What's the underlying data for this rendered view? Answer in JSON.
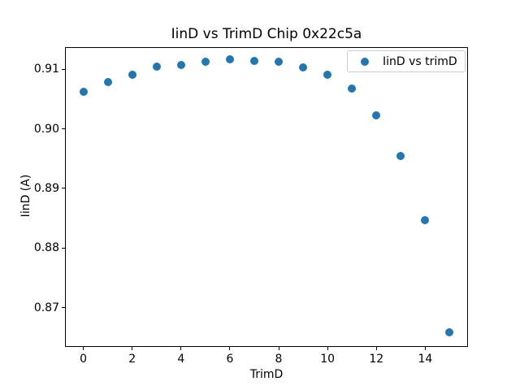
{
  "window": {
    "background": "#ffffff"
  },
  "chart_data": {
    "type": "scatter",
    "title": "IinD vs TrimD Chip 0x22c5a",
    "xlabel": "TrimD",
    "ylabel": "IinD (A)",
    "grid": false,
    "legend_position": "upper right",
    "xlim": [
      -0.75,
      15.75
    ],
    "ylim": [
      0.8634,
      0.9137
    ],
    "xticks": [
      {
        "value": 0,
        "label": "0"
      },
      {
        "value": 2,
        "label": "2"
      },
      {
        "value": 4,
        "label": "4"
      },
      {
        "value": 6,
        "label": "6"
      },
      {
        "value": 8,
        "label": "8"
      },
      {
        "value": 10,
        "label": "10"
      },
      {
        "value": 12,
        "label": "12"
      },
      {
        "value": 14,
        "label": "14"
      }
    ],
    "yticks": [
      {
        "value": 0.87,
        "label": "0.87"
      },
      {
        "value": 0.88,
        "label": "0.88"
      },
      {
        "value": 0.89,
        "label": "0.89"
      },
      {
        "value": 0.9,
        "label": "0.90"
      },
      {
        "value": 0.91,
        "label": "0.91"
      }
    ],
    "series": [
      {
        "name": "IinD vs trimD",
        "color": "#1f77b4",
        "marker": "circle",
        "x": [
          0,
          1,
          2,
          3,
          4,
          5,
          6,
          7,
          8,
          9,
          10,
          11,
          12,
          13,
          14,
          15
        ],
        "y": [
          0.9062,
          0.9079,
          0.9091,
          0.9104,
          0.9107,
          0.9112,
          0.9116,
          0.9114,
          0.9112,
          0.9103,
          0.909,
          0.9067,
          0.9022,
          0.8955,
          0.8846,
          0.8658
        ]
      }
    ]
  }
}
